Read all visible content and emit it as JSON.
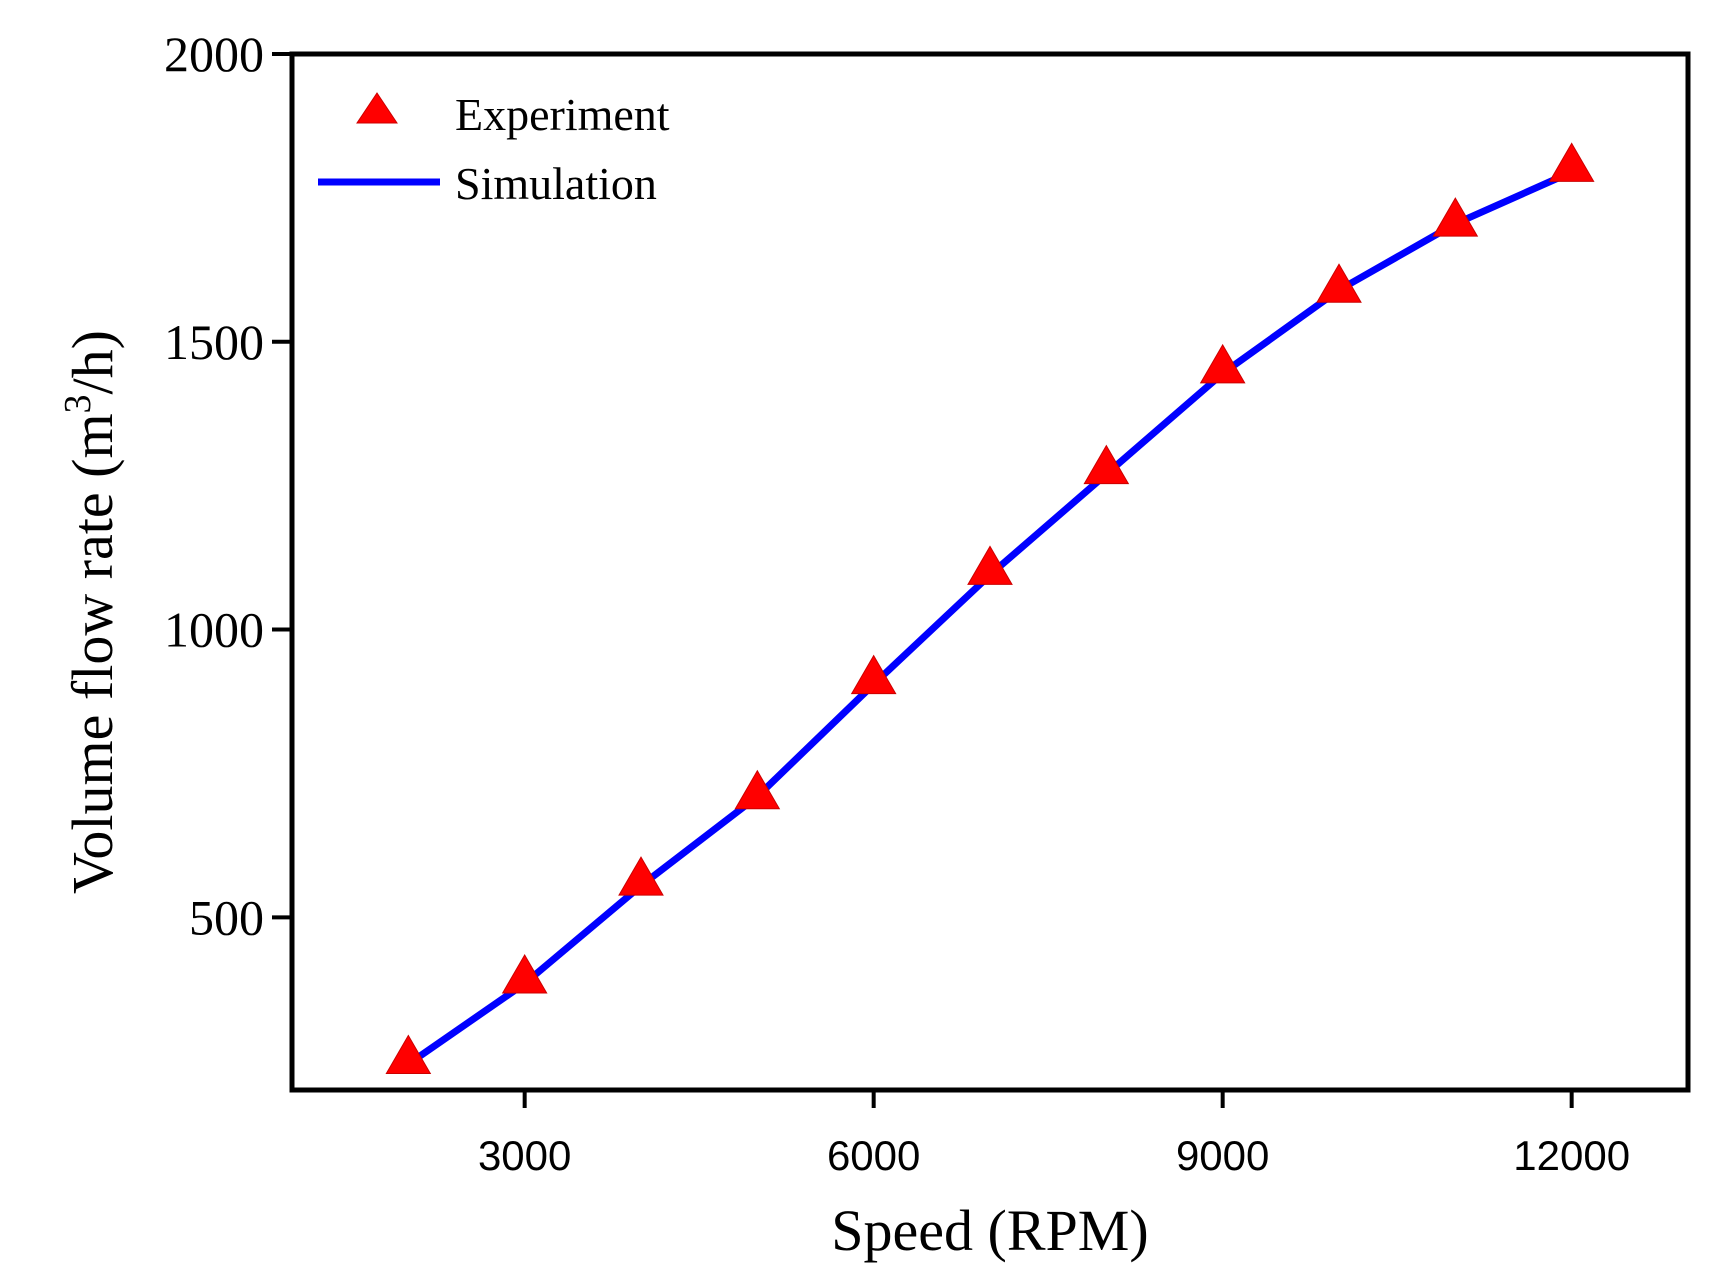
{
  "chart_data": {
    "type": "line",
    "title": "",
    "xlabel": "Speed (RPM)",
    "ylabel_main": "Volume flow rate (m",
    "ylabel_sup": "3",
    "ylabel_end": "/h)",
    "xlim": [
      1000,
      13000
    ],
    "ylim": [
      200,
      2000
    ],
    "xticks": [
      3000,
      6000,
      9000,
      12000
    ],
    "xtick_labels": [
      "3000",
      "6000",
      "9000",
      "12000"
    ],
    "yticks": [
      500,
      1000,
      1500,
      2000
    ],
    "ytick_labels": [
      "500",
      "1000",
      "1500",
      "2000"
    ],
    "grid": false,
    "legend_position": "top-left",
    "series": [
      {
        "name": "Experiment",
        "kind": "scatter",
        "marker": "triangle",
        "color": "#ff0000",
        "x": [
          2000,
          3000,
          4000,
          5000,
          6000,
          7000,
          8000,
          9000,
          10000,
          11000,
          12000
        ],
        "y": [
          255,
          395,
          565,
          715,
          915,
          1105,
          1280,
          1455,
          1595,
          1710,
          1805
        ]
      },
      {
        "name": "Simulation",
        "kind": "line",
        "color": "#0000ff",
        "x": [
          2000,
          3000,
          4000,
          5000,
          6000,
          7000,
          8000,
          9000,
          10000,
          11000,
          12000
        ],
        "y": [
          245,
          385,
          555,
          710,
          905,
          1095,
          1270,
          1445,
          1590,
          1705,
          1795
        ]
      }
    ]
  }
}
